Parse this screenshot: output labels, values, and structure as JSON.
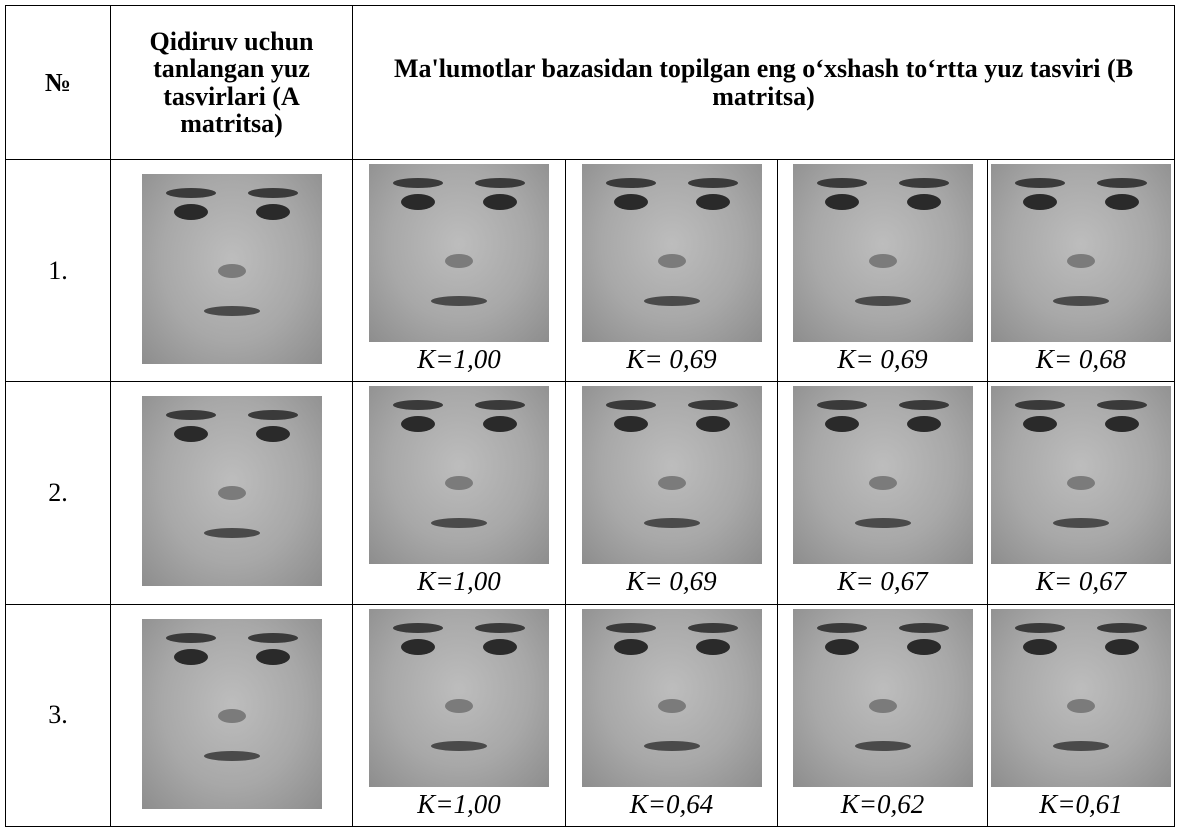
{
  "header": {
    "number": "№",
    "query": "Qidiruv uchun tanlangan yuz tasvirlari (A matritsa)",
    "results": "Ma'lumotlar bazasidan topilgan eng o‘xshash to‘rtta yuz tasviri (B matritsa)"
  },
  "rows": [
    {
      "number": "1.",
      "scores": [
        "K=1,00",
        "K= 0,69",
        "K= 0,69",
        "K= 0,68"
      ]
    },
    {
      "number": "2.",
      "scores": [
        "K=1,00",
        "K= 0,69",
        "K= 0,67",
        "K= 0,67"
      ]
    },
    {
      "number": "3.",
      "scores": [
        "K=1,00",
        "K=0,64",
        "K=0,62",
        "K=0,61"
      ]
    }
  ]
}
